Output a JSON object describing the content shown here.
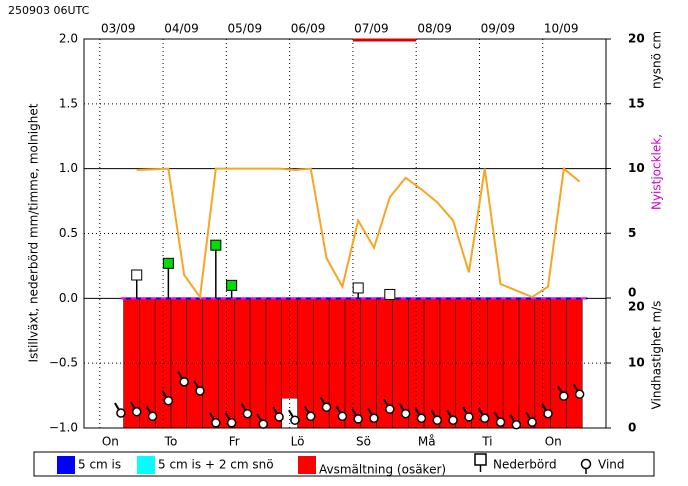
{
  "header": "250903 06UTC",
  "chart_data": {
    "type": "line",
    "ylabel": "Istillväxt, nederbörd mm/timme, molnighet",
    "y2label_a": "nysnö cm",
    "y2label_b": "Nyistjocklek,",
    "y3label": "Vindhastighet m/s",
    "xlim": [
      0,
      198
    ],
    "ylim": [
      -1,
      2
    ],
    "yticks": [
      {
        "value": 2,
        "label": "2.0"
      },
      {
        "value": 1.5,
        "label": "1.5"
      },
      {
        "value": 1,
        "label": "1.0"
      },
      {
        "value": 0.5,
        "label": "0.5"
      },
      {
        "value": 0,
        "label": "0.0"
      },
      {
        "value": -0.5,
        "label": "−0.5"
      },
      {
        "value": -1,
        "label": "−1.0"
      }
    ],
    "y2lim": [
      0,
      20
    ],
    "y2ticks": [
      0,
      5,
      10,
      15,
      20
    ],
    "y3lim": [
      0,
      20
    ],
    "y3ticks": [
      0,
      10,
      20
    ],
    "xgrid": [
      6,
      30,
      54,
      78,
      102,
      126,
      150,
      174,
      198
    ],
    "date_ticks": [
      {
        "value": 13,
        "label": "03/09"
      },
      {
        "value": 37,
        "label": "04/09"
      },
      {
        "value": 61,
        "label": "05/09"
      },
      {
        "value": 85,
        "label": "06/09"
      },
      {
        "value": 109,
        "label": "07/09"
      },
      {
        "value": 133,
        "label": "08/09"
      },
      {
        "value": 157,
        "label": "09/09"
      },
      {
        "value": 181,
        "label": "10/09"
      }
    ],
    "day_ticks": [
      {
        "value": 10,
        "label": "On"
      },
      {
        "value": 33,
        "label": "To"
      },
      {
        "value": 57,
        "label": "Fr"
      },
      {
        "value": 81,
        "label": "Lö"
      },
      {
        "value": 106,
        "label": "Sö"
      },
      {
        "value": 130,
        "label": "Må"
      },
      {
        "value": 153,
        "label": "Ti"
      },
      {
        "value": 178,
        "label": "On"
      }
    ],
    "cloud": {
      "color": "#f5a623",
      "x": [
        20,
        26,
        32,
        38,
        44,
        50,
        56,
        62,
        68,
        74,
        80,
        86,
        92,
        98,
        104,
        110,
        116,
        122,
        128,
        134,
        140,
        146,
        152,
        158,
        164,
        170,
        176,
        182,
        188
      ],
      "values": [
        0.99,
        0.995,
        1.0,
        0.18,
        0.01,
        1.0,
        1.0,
        1.0,
        1.0,
        1.0,
        0.99,
        1.0,
        0.31,
        0.09,
        0.6,
        0.39,
        0.78,
        0.93,
        0.84,
        0.74,
        0.6,
        0.2,
        1.0,
        0.11,
        0.06,
        0.01,
        0.09,
        1.0,
        0.9
      ]
    },
    "melt": {
      "color": "#ff0000",
      "x": [
        18,
        24,
        30,
        36,
        42,
        48,
        54,
        60,
        66,
        72,
        78,
        84,
        90,
        96,
        102,
        108,
        114,
        120,
        126,
        132,
        138,
        144,
        150,
        156,
        162,
        168,
        174,
        180,
        186
      ],
      "values": [
        -1,
        -1,
        -1,
        -1,
        -1,
        -1,
        -1,
        -1,
        -1,
        -1,
        -0.77,
        -1,
        -1,
        -1,
        -1,
        -1,
        -1,
        -1,
        -1,
        -1,
        -1,
        -1,
        -1,
        -1,
        -1,
        -1,
        -1,
        -1,
        -1
      ]
    },
    "ice_line": {
      "x": [
        14,
        191
      ],
      "values": [
        0,
        0
      ]
    },
    "top_marker": {
      "x": [
        102,
        126
      ]
    },
    "precip": {
      "x": [
        20,
        32,
        50,
        56,
        104,
        116
      ],
      "values": [
        0.18,
        0.27,
        0.41,
        0.1,
        0.08,
        0.03
      ],
      "colors": [
        "#ffffff",
        "#00dd00",
        "#00dd00",
        "#00dd00",
        "#ffffff",
        "#ffffff"
      ]
    },
    "wind": {
      "x": [
        14,
        20,
        26,
        32,
        38,
        44,
        50,
        56,
        62,
        68,
        74,
        80,
        86,
        92,
        98,
        104,
        110,
        116,
        122,
        128,
        134,
        140,
        146,
        152,
        158,
        164,
        170,
        176,
        182,
        188
      ],
      "values": [
        2.3,
        2.5,
        1.8,
        4.2,
        7.1,
        5.7,
        0.8,
        0.8,
        2.2,
        0.6,
        1.7,
        1.2,
        1.8,
        3.2,
        1.8,
        1.4,
        1.5,
        2.9,
        2.2,
        1.5,
        1.2,
        1.2,
        1.7,
        1.5,
        0.9,
        0.5,
        0.9,
        2.2,
        4.9,
        5.2
      ]
    },
    "legend": [
      {
        "name": "5 cm is",
        "color": "#0000ff"
      },
      {
        "name": "5 cm is + 2 cm snö",
        "color": "#00ffff"
      },
      {
        "name": "Avsmältning (osäker)",
        "color": "#ff0000"
      },
      {
        "name": "Nederbörd"
      },
      {
        "name": "Vind"
      }
    ]
  }
}
